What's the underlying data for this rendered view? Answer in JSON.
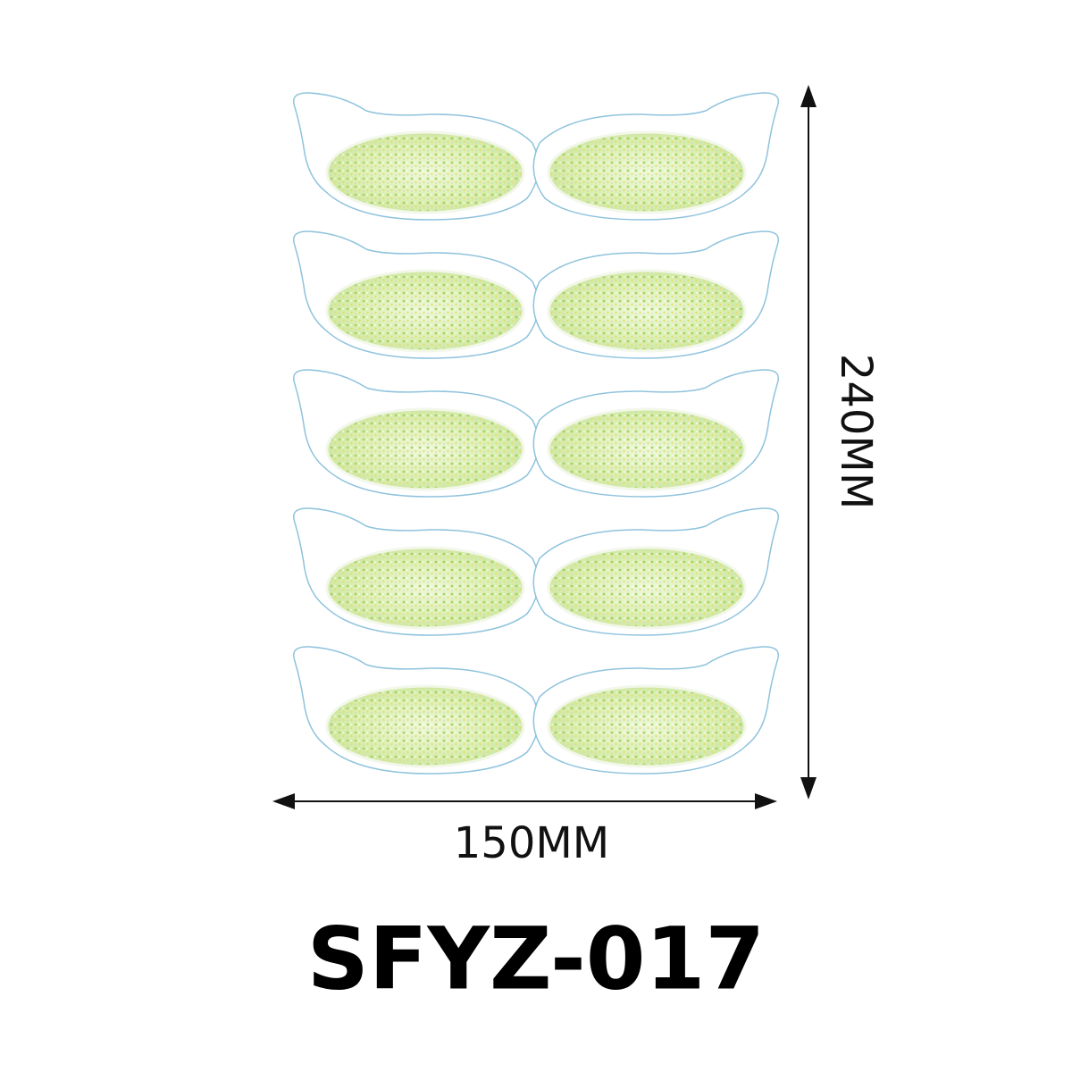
{
  "dimensions": {
    "height": "240MM",
    "width": "150MM"
  },
  "model": "SFYZ-017"
}
